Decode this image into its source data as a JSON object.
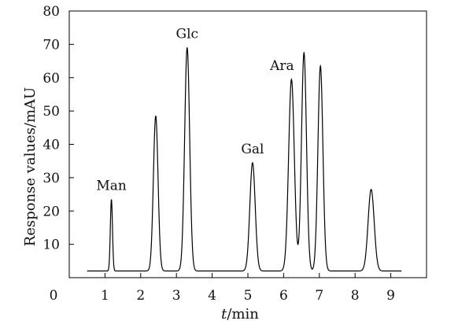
{
  "chart_data": {
    "type": "line",
    "xlabel": {
      "italic": "t",
      "rest": "/min"
    },
    "ylabel": "Response values/mAU",
    "xlim": [
      0,
      10
    ],
    "ylim": [
      0,
      80
    ],
    "x_ticks": [
      0,
      1,
      2,
      3,
      4,
      5,
      6,
      7,
      8,
      9
    ],
    "y_ticks": [
      10,
      20,
      30,
      40,
      50,
      60,
      70,
      80
    ],
    "origin_label": "0",
    "grid": false,
    "legend": "none",
    "line_color": "#000000",
    "baseline": 2,
    "peaks": [
      {
        "x": 1.18,
        "y": 23.5,
        "width": 0.03,
        "label": "Man"
      },
      {
        "x": 2.42,
        "y": 48.5,
        "width": 0.065,
        "label": ""
      },
      {
        "x": 3.3,
        "y": 69.0,
        "width": 0.07,
        "label": "Glc"
      },
      {
        "x": 5.13,
        "y": 34.5,
        "width": 0.075,
        "label": "Gal"
      },
      {
        "x": 6.22,
        "y": 59.5,
        "width": 0.08,
        "label": "Ara"
      },
      {
        "x": 6.57,
        "y": 67.5,
        "width": 0.07,
        "label": ""
      },
      {
        "x": 7.03,
        "y": 63.5,
        "width": 0.07,
        "label": ""
      },
      {
        "x": 8.45,
        "y": 26.5,
        "width": 0.085,
        "label": ""
      }
    ],
    "trace_x_range": [
      0.5,
      9.3
    ]
  }
}
